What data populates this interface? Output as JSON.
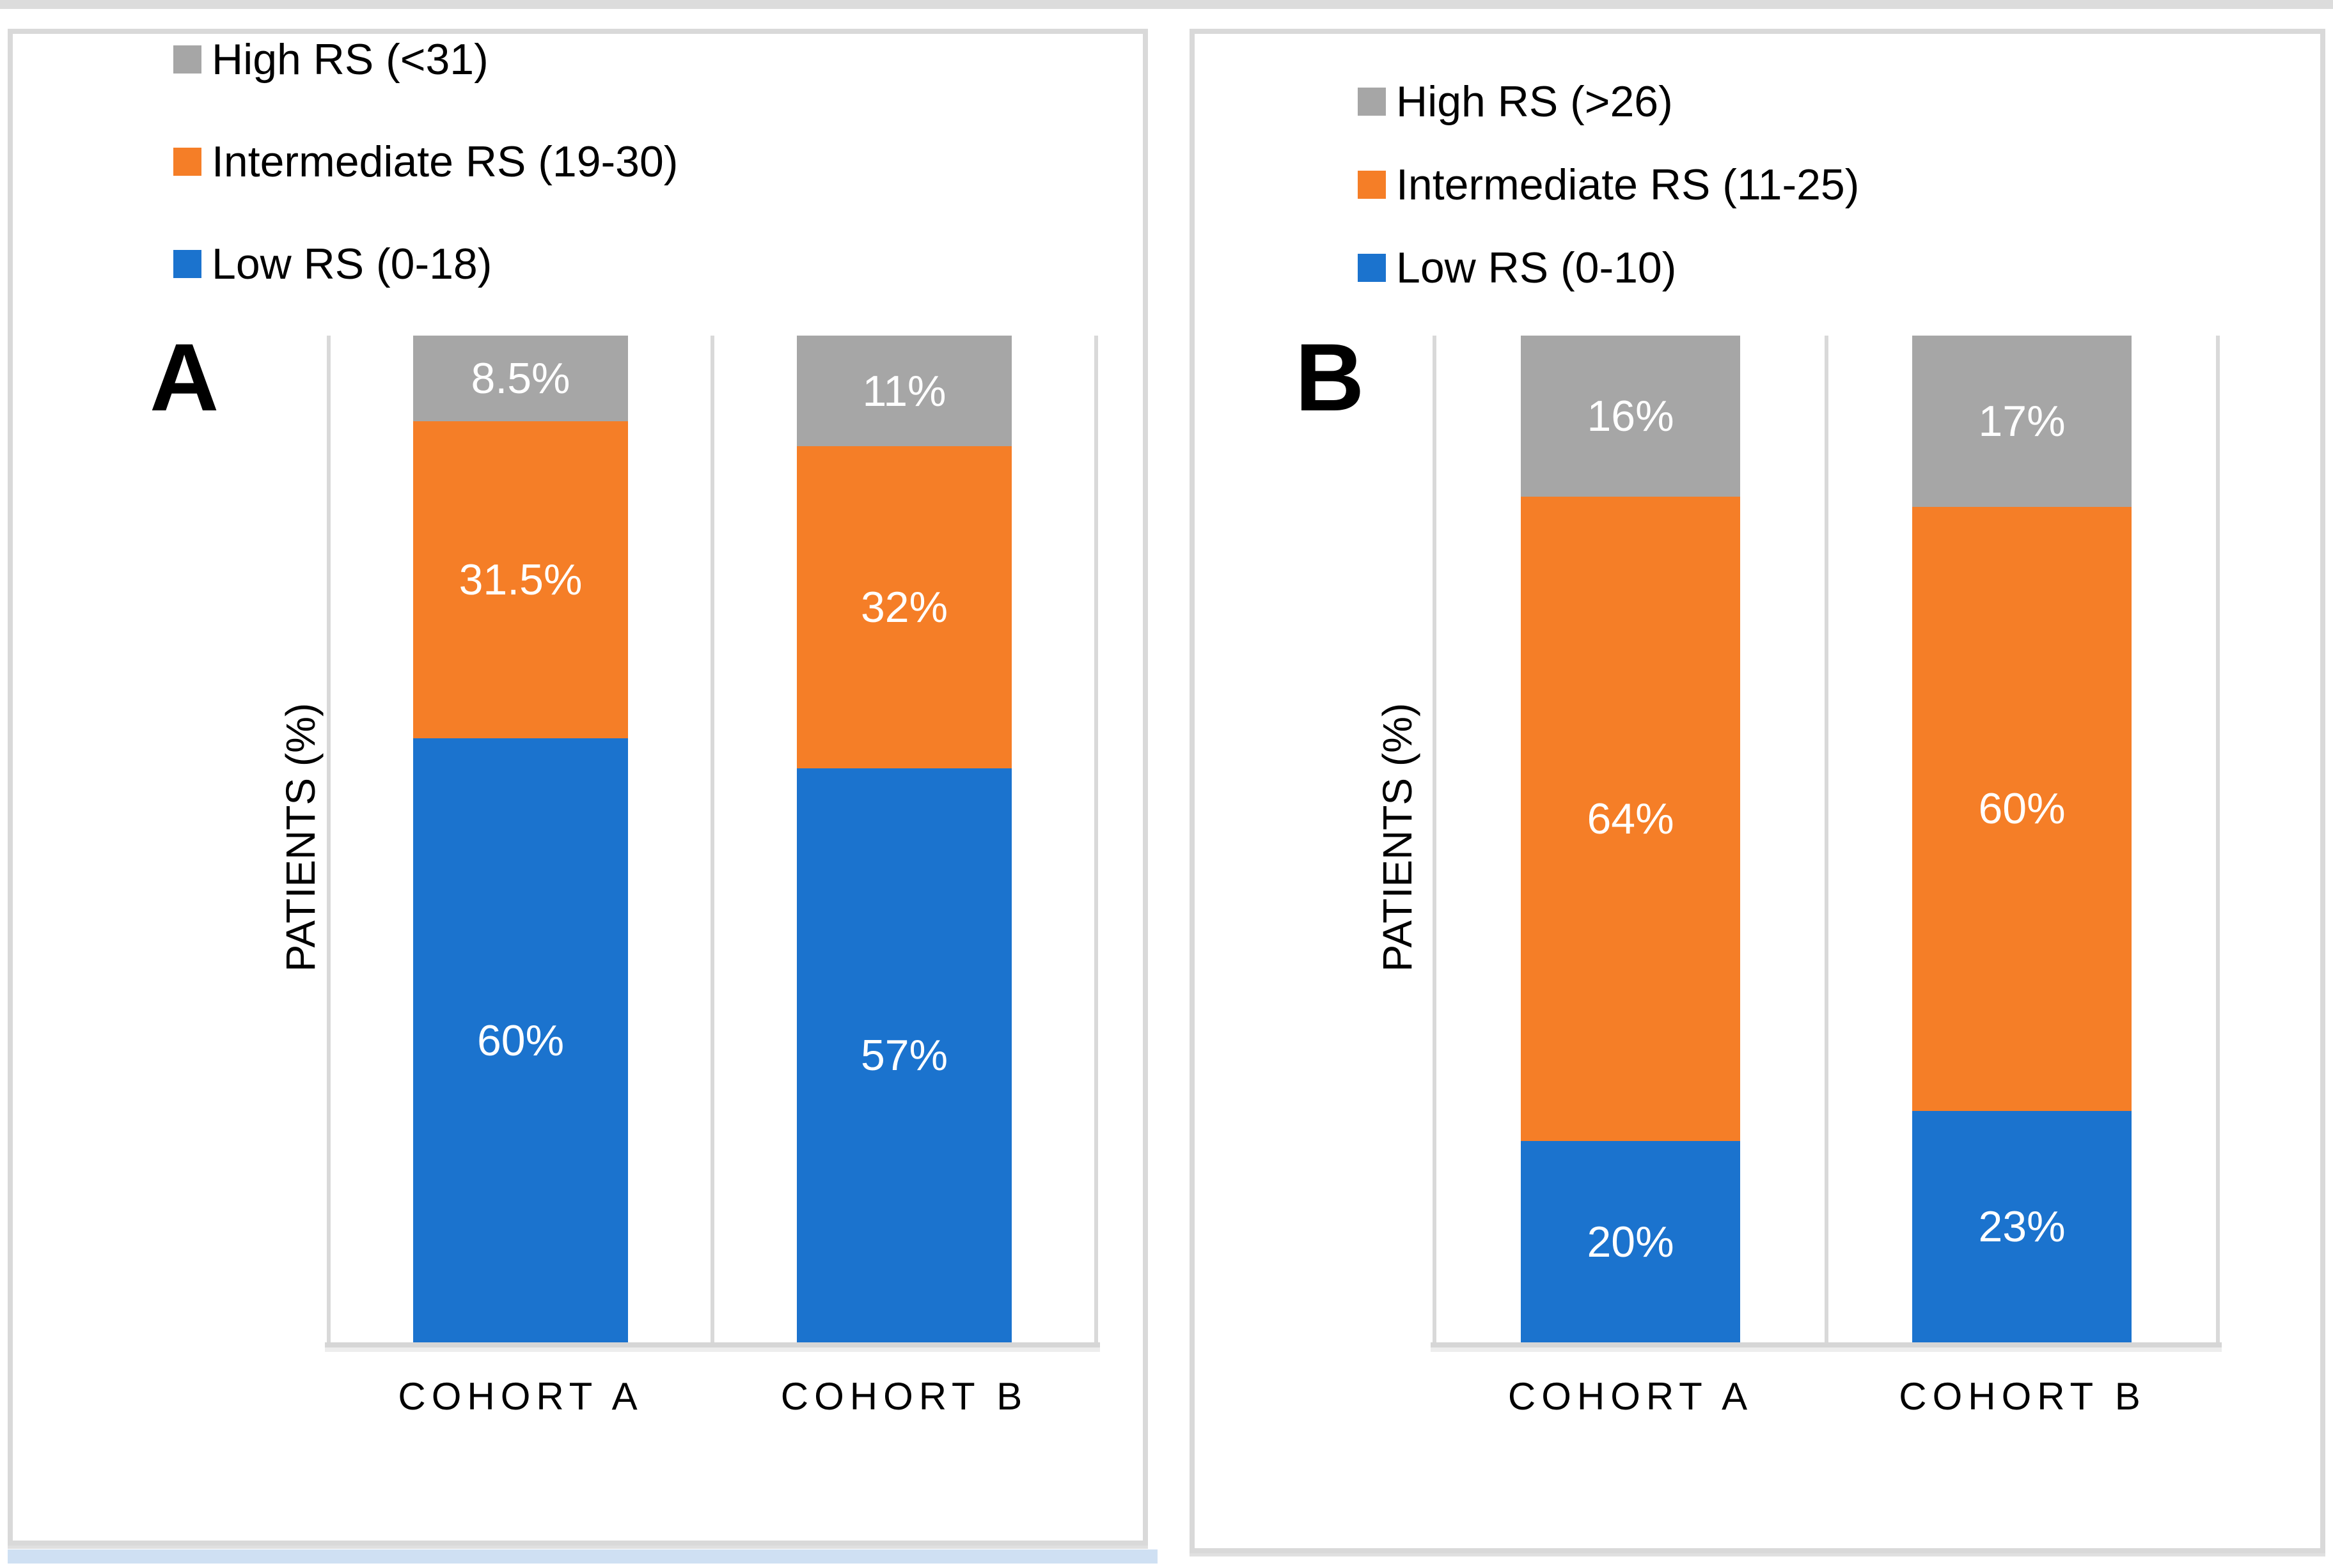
{
  "colors": {
    "low_rs_blue": "#1b73ce",
    "intermediate_rs_orange": "#f57e27",
    "high_rs_gray": "#a6a6a6",
    "gridline": "#d9d9d9",
    "data_label_text": "#ffffff",
    "top_strip": "#dcdcdc",
    "bottom_strip": "#cfe0f3"
  },
  "chart_data": [
    {
      "type": "bar",
      "stacked": true,
      "panel_label": "A",
      "ylabel": "PATIENTS (%)",
      "ylim": [
        0,
        100
      ],
      "grid": "vertical category separators",
      "legend_position": "top-left",
      "categories": [
        "COHORT A",
        "COHORT B"
      ],
      "legend": [
        {
          "label": "High RS (<31)",
          "color": "#a6a6a6"
        },
        {
          "label": "Intermediate RS (19-30)",
          "color": "#f57e27"
        },
        {
          "label": "Low RS (0-18)",
          "color": "#1b73ce"
        }
      ],
      "series": [
        {
          "name": "Low RS (0-18)",
          "color": "#1b73ce",
          "values": [
            60,
            57
          ],
          "data_labels": [
            "60%",
            "57%"
          ]
        },
        {
          "name": "Intermediate RS (19-30)",
          "color": "#f57e27",
          "values": [
            31.5,
            32
          ],
          "data_labels": [
            "31.5%",
            "32%"
          ]
        },
        {
          "name": "High RS (<31)",
          "color": "#a6a6a6",
          "values": [
            8.5,
            11
          ],
          "data_labels": [
            "8.5%",
            "11%"
          ]
        }
      ]
    },
    {
      "type": "bar",
      "stacked": true,
      "panel_label": "B",
      "ylabel": "PATIENTS (%)",
      "ylim": [
        0,
        100
      ],
      "grid": "vertical category separators",
      "legend_position": "top-left",
      "categories": [
        "COHORT A",
        "COHORT B"
      ],
      "legend": [
        {
          "label": "High RS (>26)",
          "color": "#a6a6a6"
        },
        {
          "label": "Intermediate RS (11-25)",
          "color": "#f57e27"
        },
        {
          "label": "Low RS (0-10)",
          "color": "#1b73ce"
        }
      ],
      "series": [
        {
          "name": "Low RS (0-10)",
          "color": "#1b73ce",
          "values": [
            20,
            23
          ],
          "data_labels": [
            "20%",
            "23%"
          ]
        },
        {
          "name": "Intermediate RS (11-25)",
          "color": "#f57e27",
          "values": [
            64,
            60
          ],
          "data_labels": [
            "64%",
            "60%"
          ]
        },
        {
          "name": "High RS (>26)",
          "color": "#a6a6a6",
          "values": [
            16,
            17
          ],
          "data_labels": [
            "16%",
            "17%"
          ]
        }
      ]
    }
  ]
}
